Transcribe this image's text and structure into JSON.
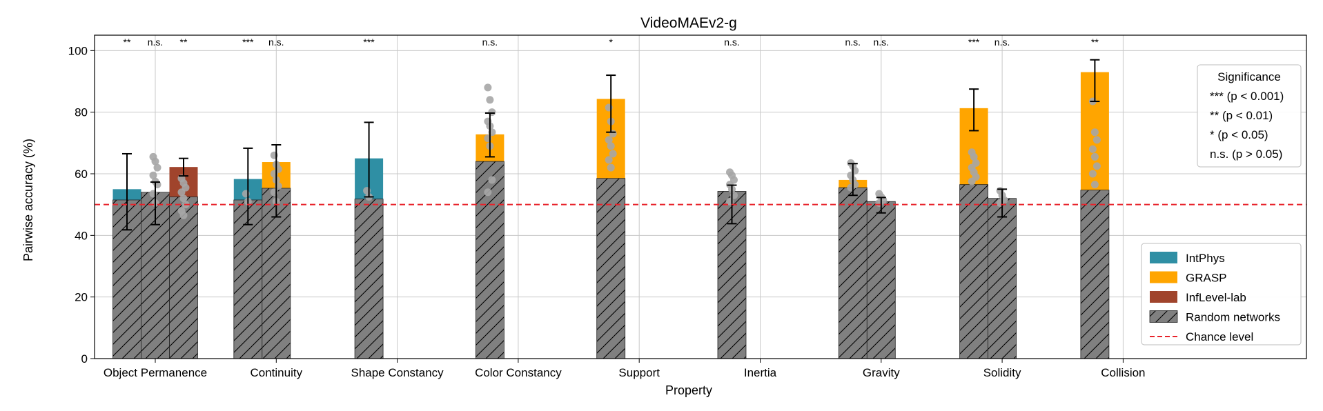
{
  "chart_data": {
    "type": "bar",
    "title": "VideoMAEv2-g",
    "xlabel": "Property",
    "ylabel": "Pairwise accuracy (%)",
    "ylim": [
      0,
      105
    ],
    "yticks": [
      0,
      20,
      40,
      60,
      80,
      100
    ],
    "grid": true,
    "chance_level": 50,
    "categories": [
      "Object Permanence",
      "Continuity",
      "Shape Constancy",
      "Color Constancy",
      "Support",
      "Inertia",
      "Gravity",
      "Solidity",
      "Collision"
    ],
    "series": [
      {
        "name": "IntPhys",
        "color": "#2f8fa4"
      },
      {
        "name": "GRASP",
        "color": "#ffa500"
      },
      {
        "name": "InfLevel-lab",
        "color": "#a0442c"
      },
      {
        "name": "Random networks",
        "color": "#808080",
        "hatch": true
      },
      {
        "name": "Chance level",
        "color": "#e8222a",
        "dashed": true
      }
    ],
    "bars": [
      {
        "category": 0,
        "slot": 0,
        "dataset": "IntPhys",
        "value": 55.0,
        "random_mean": 51.5,
        "err_low": 41.8,
        "err_high": 66.5,
        "significance": "**",
        "points": []
      },
      {
        "category": 0,
        "slot": 1,
        "dataset": "GRASP",
        "value": 54.0,
        "random_mean": 54.0,
        "err_low": 43.5,
        "err_high": 57.3,
        "significance": "n.s.",
        "points": [
          65.5,
          64.0,
          62.0,
          59.5,
          57.5,
          56.5,
          53.5,
          50.5
        ]
      },
      {
        "category": 0,
        "slot": 2,
        "dataset": "InfLevel-lab",
        "value": 62.2,
        "random_mean": 52.5,
        "err_low": 59.3,
        "err_high": 65.0,
        "significance": "**",
        "points": [
          58.5,
          57.0,
          55.5,
          54.0,
          52.0,
          50.0,
          48.0,
          46.5
        ]
      },
      {
        "category": 1,
        "slot": 0,
        "dataset": "IntPhys",
        "value": 58.3,
        "random_mean": 51.5,
        "err_low": 43.5,
        "err_high": 68.3,
        "significance": "***",
        "points": [
          53.5,
          51.0
        ]
      },
      {
        "category": 1,
        "slot": 1,
        "dataset": "GRASP",
        "value": 63.8,
        "random_mean": 55.3,
        "err_low": 46.0,
        "err_high": 69.4,
        "significance": "n.s.",
        "points": [
          66.0,
          63.0,
          61.5,
          60.0,
          58.0,
          56.0,
          54.0,
          51.0
        ]
      },
      {
        "category": 2,
        "slot": 0,
        "dataset": "IntPhys",
        "value": 65.0,
        "random_mean": 51.8,
        "err_low": 52.5,
        "err_high": 76.7,
        "significance": "***",
        "points": [
          54.5,
          52.5
        ]
      },
      {
        "category": 3,
        "slot": 0,
        "dataset": "GRASP",
        "value": 72.8,
        "random_mean": 64.0,
        "err_low": 65.5,
        "err_high": 79.7,
        "significance": "n.s.",
        "points": [
          88.0,
          84.0,
          80.0,
          77.0,
          75.5,
          73.5,
          71.5,
          69.0,
          58.0,
          54.0
        ]
      },
      {
        "category": 4,
        "slot": 0,
        "dataset": "GRASP",
        "value": 84.3,
        "random_mean": 58.5,
        "err_low": 73.5,
        "err_high": 92.0,
        "significance": "*",
        "points": [
          81.5,
          77.0,
          73.0,
          71.0,
          69.0,
          66.5,
          64.5,
          62.0
        ]
      },
      {
        "category": 5,
        "slot": 0,
        "dataset": "GRASP",
        "value": 54.3,
        "random_mean": 54.3,
        "err_low": 43.8,
        "err_high": 56.3,
        "significance": "n.s.",
        "points": [
          60.5,
          59.5,
          58.0,
          56.5,
          55.0,
          53.0,
          51.0
        ]
      },
      {
        "category": 6,
        "slot": 0,
        "dataset": "GRASP",
        "value": 58.0,
        "random_mean": 55.5,
        "err_low": 53.0,
        "err_high": 63.3,
        "significance": "n.s.",
        "points": [
          63.5,
          62.5,
          61.0,
          59.5,
          58.0,
          56.5,
          55.5
        ]
      },
      {
        "category": 6,
        "slot": 1,
        "dataset": "GRASP",
        "value": 51.0,
        "random_mean": 51.0,
        "err_low": 47.3,
        "err_high": 52.3,
        "significance": "n.s.",
        "points": [
          53.5,
          52.5,
          51.5,
          50.5
        ]
      },
      {
        "category": 7,
        "slot": 0,
        "dataset": "GRASP",
        "value": 81.3,
        "random_mean": 56.5,
        "err_low": 74.0,
        "err_high": 87.5,
        "significance": "***",
        "points": [
          67.0,
          65.5,
          63.5,
          62.0,
          60.5,
          59.0,
          57.5
        ]
      },
      {
        "category": 7,
        "slot": 1,
        "dataset": "GRASP",
        "value": 52.0,
        "random_mean": 52.0,
        "err_low": 46.0,
        "err_high": 55.0,
        "significance": "n.s.",
        "points": [
          54.5,
          53.0,
          51.5,
          50.5
        ]
      },
      {
        "category": 8,
        "slot": 0,
        "dataset": "GRASP",
        "value": 93.0,
        "random_mean": 54.7,
        "err_low": 83.5,
        "err_high": 97.0,
        "significance": "**",
        "points": [
          83.5,
          73.5,
          71.0,
          68.0,
          65.5,
          62.5,
          60.0,
          56.5
        ]
      }
    ],
    "significance_legend": {
      "title": "Significance",
      "entries": [
        "*** (p < 0.001)",
        "** (p < 0.01)",
        "* (p < 0.05)",
        "n.s. (p > 0.05)"
      ]
    },
    "legend_position": "right"
  }
}
